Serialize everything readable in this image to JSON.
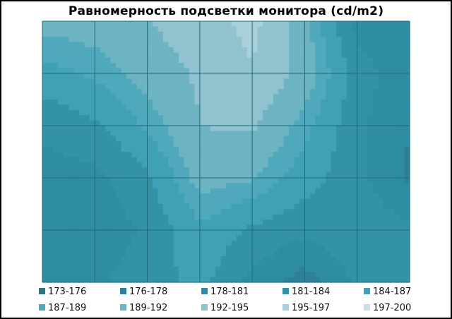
{
  "chart_data": {
    "type": "heatmap",
    "title": "Равномерность  подсветки монитора (cd/m2)",
    "xlabel": "",
    "ylabel": "",
    "grid": true,
    "legend_position": "bottom",
    "columns": 7,
    "rows": 5,
    "values": [
      [
        190,
        191,
        193,
        194,
        198,
        182,
        178
      ],
      [
        182,
        187,
        190,
        193,
        194,
        190,
        180
      ],
      [
        181,
        184,
        189,
        196,
        187,
        181,
        176
      ],
      [
        179,
        176,
        185,
        191,
        183,
        191,
        179
      ],
      [
        180,
        181,
        184,
        186,
        174,
        179,
        184
      ]
    ],
    "legend": [
      {
        "label": "173-176",
        "color": "#2e7584"
      },
      {
        "label": "176-178",
        "color": "#2f8096"
      },
      {
        "label": "178-181",
        "color": "#2e8da3"
      },
      {
        "label": "181-184",
        "color": "#3392a6"
      },
      {
        "label": "184-187",
        "color": "#40a1b6"
      },
      {
        "label": "187-189",
        "color": "#4fa8bb"
      },
      {
        "label": "189-192",
        "color": "#6db3c2"
      },
      {
        "label": "192-195",
        "color": "#90c3cf"
      },
      {
        "label": "195-197",
        "color": "#a9d0da"
      },
      {
        "label": "197-200",
        "color": "#c7e0e6"
      }
    ]
  }
}
